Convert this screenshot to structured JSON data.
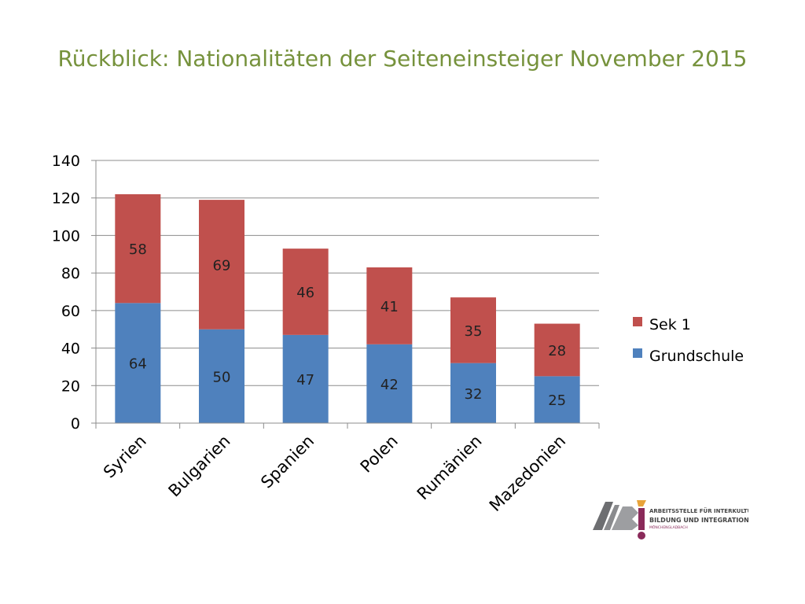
{
  "slide": {
    "title": "Rückblick: Nationalitäten der Seiteneinsteiger November 2015"
  },
  "chart_data": {
    "type": "bar",
    "stacked": true,
    "title": "",
    "xlabel": "",
    "ylabel": "",
    "categories": [
      "Syrien",
      "Bulgarien",
      "Spanien",
      "Polen",
      "Rumänien",
      "Mazedonien"
    ],
    "series": [
      {
        "name": "Grundschule",
        "values": [
          64,
          50,
          47,
          42,
          32,
          25
        ],
        "color": "#4f81bd"
      },
      {
        "name": "Sek 1",
        "values": [
          58,
          69,
          46,
          41,
          35,
          28
        ],
        "color": "#c0504d"
      }
    ],
    "ylim": [
      0,
      140
    ],
    "yticks": [
      0,
      20,
      40,
      60,
      80,
      100,
      120,
      140
    ],
    "grid": true,
    "legend": "right",
    "data_labels": true
  },
  "logo": {
    "mark": "ABi",
    "line1": "ARBEITSSTELLE FÜR INTERKULTURELLE",
    "line2": "BILDUNG UND INTEGRATION",
    "line3": "MÖNCHENGLADBACH"
  }
}
